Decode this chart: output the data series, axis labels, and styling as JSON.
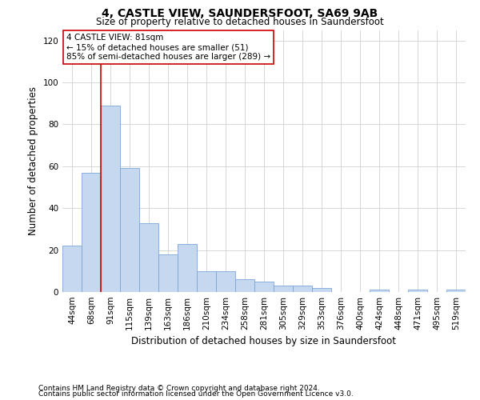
{
  "title": "4, CASTLE VIEW, SAUNDERSFOOT, SA69 9AB",
  "subtitle": "Size of property relative to detached houses in Saundersfoot",
  "xlabel": "Distribution of detached houses by size in Saundersfoot",
  "ylabel": "Number of detached properties",
  "footnote1": "Contains HM Land Registry data © Crown copyright and database right 2024.",
  "footnote2": "Contains public sector information licensed under the Open Government Licence v3.0.",
  "categories": [
    "44sqm",
    "68sqm",
    "91sqm",
    "115sqm",
    "139sqm",
    "163sqm",
    "186sqm",
    "210sqm",
    "234sqm",
    "258sqm",
    "281sqm",
    "305sqm",
    "329sqm",
    "353sqm",
    "376sqm",
    "400sqm",
    "424sqm",
    "448sqm",
    "471sqm",
    "495sqm",
    "519sqm"
  ],
  "values": [
    22,
    57,
    89,
    59,
    33,
    18,
    23,
    10,
    10,
    6,
    5,
    3,
    3,
    2,
    0,
    0,
    1,
    0,
    1,
    0,
    1
  ],
  "bar_color": "#c5d8f0",
  "bar_edge_color": "#7aa8d8",
  "background_color": "#ffffff",
  "grid_color": "#c8c8c8",
  "vline_color": "#cc0000",
  "annotation_text": "4 CASTLE VIEW: 81sqm\n← 15% of detached houses are smaller (51)\n85% of semi-detached houses are larger (289) →",
  "annotation_box_color": "#ffffff",
  "annotation_box_edge": "#cc0000",
  "ylim": [
    0,
    125
  ],
  "yticks": [
    0,
    20,
    40,
    60,
    80,
    100,
    120
  ],
  "title_fontsize": 10,
  "subtitle_fontsize": 8.5,
  "xlabel_fontsize": 8.5,
  "ylabel_fontsize": 8.5,
  "tick_fontsize": 7.5,
  "annot_fontsize": 7.5,
  "footnote_fontsize": 6.5
}
